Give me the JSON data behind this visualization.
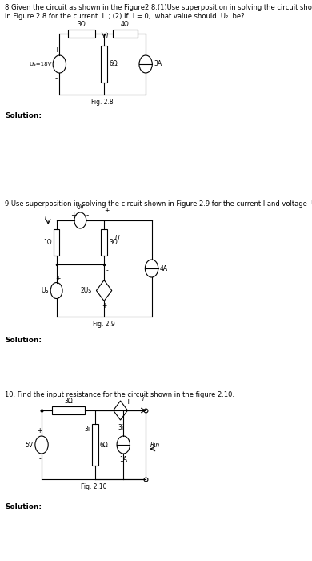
{
  "bg_color": "#ffffff",
  "text_color": "#000000",
  "fig_width": 3.9,
  "fig_height": 7.0,
  "p8_line1": "8.Given the circuit as shown in the Figure2.8.(1)Use superposition in solving the circuit shown",
  "p8_line2": "in Figure 2.8 for the current  I  ; (2) If  I = 0,  what value should  U₂  be?",
  "p9_line1": "9 Use superposition in solving the circuit shown in Figure 2.9 for the current I and voltage  U.",
  "p10_line1": "10. Find the input resistance for the circuit shown in the figure 2.10.",
  "solution": "Solution:",
  "fig28": "Fig. 2.8",
  "fig29": "Fig. 2.9",
  "fig210": "Fig. 2.10",
  "fontsize_text": 6.0,
  "fontsize_label": 5.5,
  "fontsize_solution": 6.5
}
